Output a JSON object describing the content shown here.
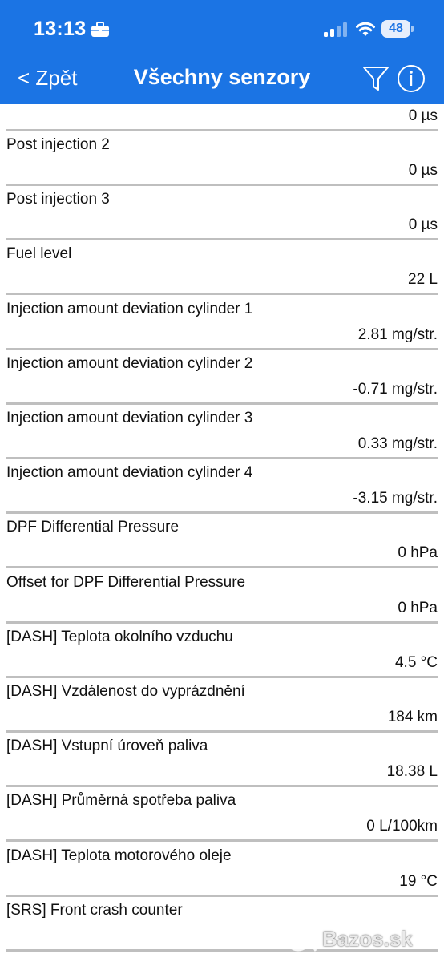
{
  "status_bar": {
    "time": "13:13",
    "battery": "48"
  },
  "nav": {
    "back_label": "< Zpět",
    "title": "Všechny senzory"
  },
  "first_row_value": "0 µs",
  "sensors": [
    {
      "name": "Post injection 2",
      "value": "0 µs"
    },
    {
      "name": "Post injection 3",
      "value": "0 µs"
    },
    {
      "name": "Fuel level",
      "value": "22 L"
    },
    {
      "name": "Injection amount deviation cylinder 1",
      "value": "2.81 mg/str."
    },
    {
      "name": "Injection amount deviation cylinder 2",
      "value": "-0.71 mg/str."
    },
    {
      "name": "Injection amount deviation cylinder 3",
      "value": "0.33 mg/str."
    },
    {
      "name": "Injection amount deviation cylinder 4",
      "value": "-3.15 mg/str."
    },
    {
      "name": "DPF Differential Pressure",
      "value": "0 hPa"
    },
    {
      "name": "Offset for DPF Differential Pressure",
      "value": "0 hPa"
    },
    {
      "name": "[DASH] Teplota okolního vzduchu",
      "value": "4.5 °C"
    },
    {
      "name": "[DASH] Vzdálenost do vyprázdnění",
      "value": "184 km"
    },
    {
      "name": "[DASH] Vstupní úroveň paliva",
      "value": "18.38 L"
    },
    {
      "name": "[DASH] Průměrná spotřeba paliva",
      "value": "0 L/100km"
    },
    {
      "name": "[DASH] Teplota motorového oleje",
      "value": "19 °C"
    },
    {
      "name": "[SRS] Front crash counter",
      "value": ""
    }
  ],
  "watermark": "Bazos.sk",
  "colors": {
    "header_bg": "#1b74e4",
    "divider": "#bfbfbf"
  },
  "icons": [
    "briefcase-icon",
    "signal-icon",
    "wifi-icon",
    "battery-icon",
    "filter-icon",
    "info-icon"
  ]
}
